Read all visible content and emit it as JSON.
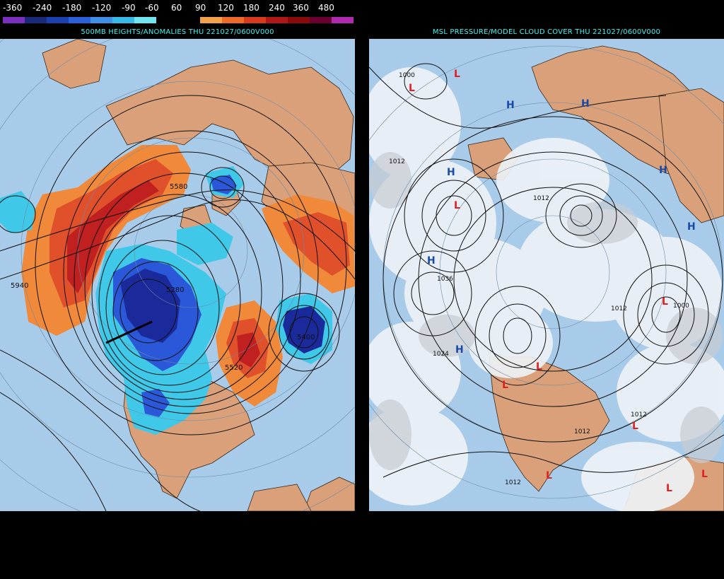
{
  "legend": {
    "labels": [
      "-360",
      "-240",
      "-180",
      "-120",
      "-90",
      "-60",
      "60",
      "90",
      "120",
      "180",
      "240",
      "360",
      "480"
    ],
    "colors": [
      "#7a2fbf",
      "#1a2a7a",
      "#1a3fae",
      "#2a60d8",
      "#3f8fe6",
      "#38b9e6",
      "#6fe6f0",
      "#000000",
      "#000000",
      "#f0a14a",
      "#ee6a2a",
      "#d83a1e",
      "#b01818",
      "#8a0a0a",
      "#6a0030",
      "#b02ab0"
    ]
  },
  "left_panel": {
    "title": "500MB HEIGHTS/ANOMALIES THU 221027/0600V000",
    "labels": [
      "5580",
      "5940",
      "5400",
      "5520",
      "5280"
    ]
  },
  "right_panel": {
    "title": "MSL PRESSURE/MODEL CLOUD COVER THU 221027/0600V000",
    "pressure_labels": [
      "1000",
      "1012",
      "1036",
      "1024",
      "1012",
      "1012",
      "1012",
      "1012",
      "1012",
      "1000"
    ],
    "high_symbol": "H",
    "low_symbol": "L"
  },
  "colors": {
    "ocean": "#a9cbea",
    "land": "#d9a07a",
    "cold_dark": "#1a2a9a",
    "cold_mid": "#2a58d8",
    "cold_light": "#40c8e8",
    "warm_light": "#f08a3a",
    "warm_mid": "#e0502a",
    "warm_dark": "#c02020",
    "high_blue": "#1a4aa8",
    "low_red": "#e02020",
    "title_cyan": "#3ef0f0"
  }
}
